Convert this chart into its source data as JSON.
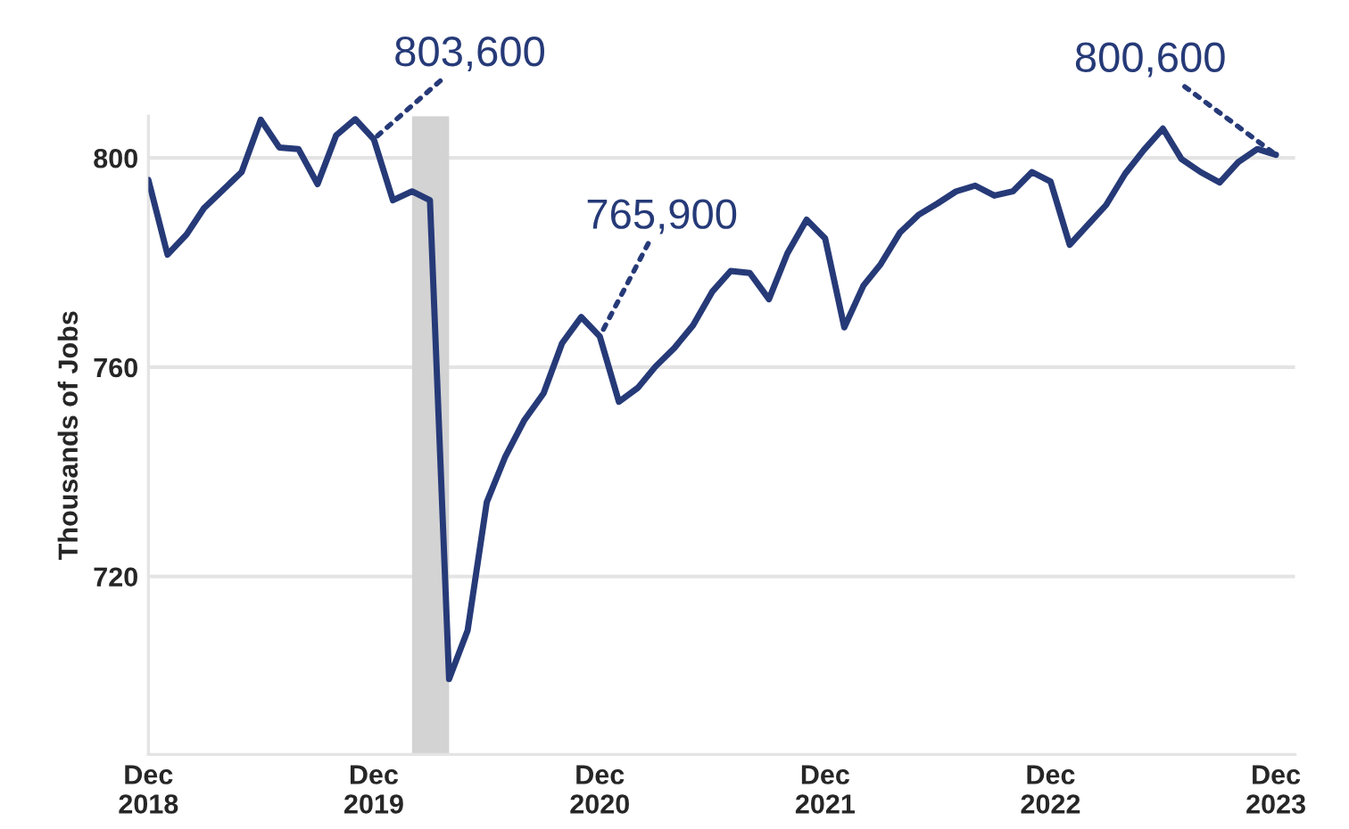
{
  "chart_data": {
    "type": "line",
    "ylabel": "Thousands of Jobs",
    "x": [
      "2018-12",
      "2019-01",
      "2019-02",
      "2019-03",
      "2019-04",
      "2019-05",
      "2019-06",
      "2019-07",
      "2019-08",
      "2019-09",
      "2019-10",
      "2019-11",
      "2019-12",
      "2020-01",
      "2020-02",
      "2020-03",
      "2020-04",
      "2020-05",
      "2020-06",
      "2020-07",
      "2020-08",
      "2020-09",
      "2020-10",
      "2020-11",
      "2020-12",
      "2021-01",
      "2021-02",
      "2021-03",
      "2021-04",
      "2021-05",
      "2021-06",
      "2021-07",
      "2021-08",
      "2021-09",
      "2021-10",
      "2021-11",
      "2021-12",
      "2022-01",
      "2022-02",
      "2022-03",
      "2022-04",
      "2022-05",
      "2022-06",
      "2022-07",
      "2022-08",
      "2022-09",
      "2022-10",
      "2022-11",
      "2022-12",
      "2023-01",
      "2023-02",
      "2023-03",
      "2023-04",
      "2023-05",
      "2023-06",
      "2023-07",
      "2023-08",
      "2023-09",
      "2023-10",
      "2023-11",
      "2023-12"
    ],
    "series": [
      {
        "color": "#263a78",
        "values": [
          795.8,
          781.5,
          785.4,
          790.4,
          793.9,
          797.3,
          807.3,
          802.0,
          801.7,
          795.0,
          804.3,
          807.4,
          803.6,
          791.9,
          793.6,
          791.9,
          700.4,
          709.7,
          734.2,
          742.9,
          749.9,
          755.0,
          764.6,
          769.6,
          765.9,
          753.4,
          756.1,
          760.1,
          763.7,
          768.0,
          774.4,
          778.4,
          778.0,
          773.0,
          781.8,
          788.2,
          784.6,
          767.6,
          775.6,
          779.7,
          785.7,
          789.1,
          791.3,
          793.6,
          794.7,
          792.8,
          793.6,
          797.3,
          795.5,
          783.4,
          787.4,
          791.0,
          797.0,
          801.5,
          805.6,
          799.8,
          797.3,
          795.3,
          799.2,
          801.7,
          800.6
        ]
      }
    ],
    "xlim": [
      "2018-12",
      "2024-01"
    ],
    "ylim": [
      686,
      808
    ],
    "xticks": [
      {
        "value": "2018-12",
        "label": "Dec\n2018"
      },
      {
        "value": "2019-12",
        "label": "Dec\n2019"
      },
      {
        "value": "2020-12",
        "label": "Dec\n2020"
      },
      {
        "value": "2021-12",
        "label": "Dec\n2021"
      },
      {
        "value": "2022-12",
        "label": "Dec\n2022"
      },
      {
        "value": "2023-12",
        "label": "Dec\n2023"
      }
    ],
    "yticks": [
      720,
      760,
      800
    ],
    "bands": [
      {
        "axis": "x",
        "from": "2020-02",
        "to": "2020-04",
        "color": "#d3d3d3"
      }
    ],
    "annotations": [
      {
        "text": "803,600",
        "x": "2019-12",
        "y": 803.6
      },
      {
        "text": "765,900",
        "x": "2020-12",
        "y": 765.9
      },
      {
        "text": "800,600",
        "x": "2023-12",
        "y": 800.6
      }
    ],
    "grid": "y",
    "legend": false,
    "marker": "none",
    "line_style": "solid"
  }
}
